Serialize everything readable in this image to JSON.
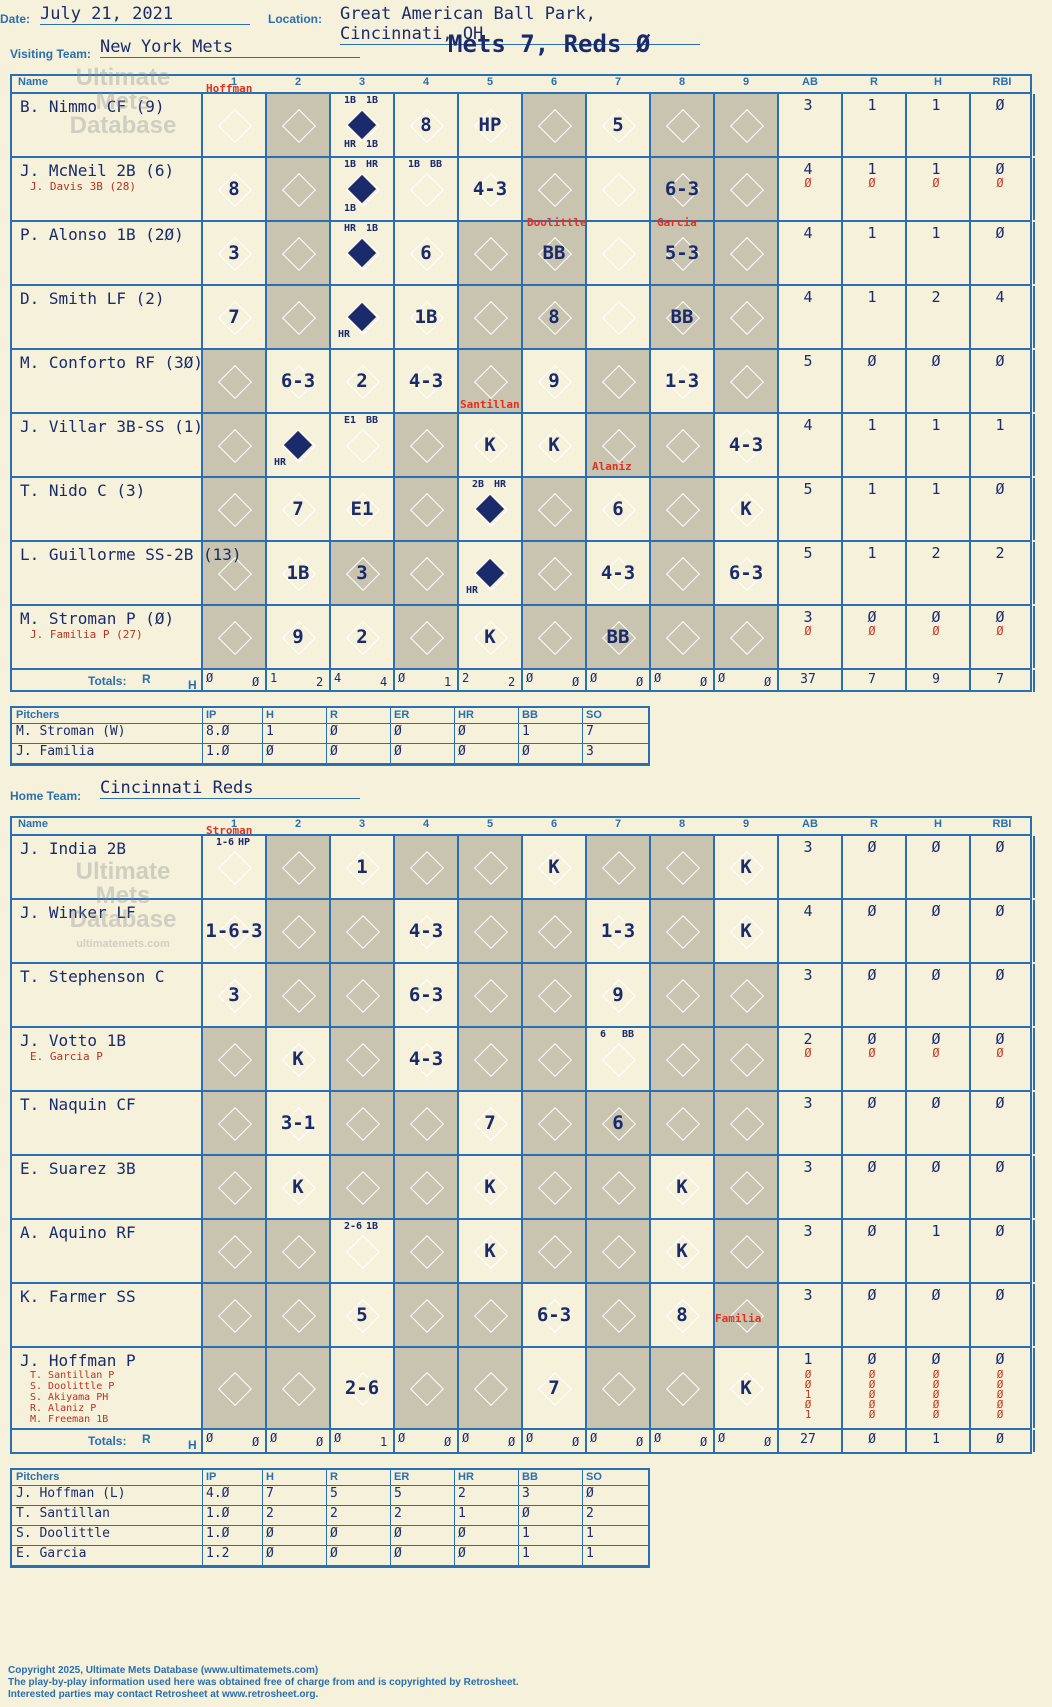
{
  "header": {
    "date_label": "Date:",
    "date": "July 21, 2021",
    "location_label": "Location:",
    "location": "Great American Ball Park, Cincinnati, OH",
    "visiting_label": "Visiting Team:",
    "visiting_team": "New York Mets",
    "home_label": "Home Team:",
    "home_team": "Cincinnati Reds",
    "score_title": "Mets 7, Reds Ø"
  },
  "columns": {
    "name": "Name",
    "innings": [
      "1",
      "2",
      "3",
      "4",
      "5",
      "6",
      "7",
      "8",
      "9"
    ],
    "stats": [
      "AB",
      "R",
      "H",
      "RBI"
    ],
    "totals": "Totals:",
    "r": "R",
    "h": "H"
  },
  "visitors": {
    "rows": [
      {
        "name": "B. Nimmo CF (9)",
        "sub": [],
        "ab": "3",
        "r": "1",
        "h": "1",
        "rbi": "Ø"
      },
      {
        "name": "J. McNeil 2B (6)",
        "sub": [
          "J. Davis 3B (28)"
        ],
        "ab": "4",
        "r": "1",
        "h": "1",
        "rbi": "Ø",
        "ab2": "Ø",
        "r2": "Ø",
        "h2": "Ø",
        "rbi2": "Ø"
      },
      {
        "name": "P. Alonso 1B (2Ø)",
        "sub": [],
        "ab": "4",
        "r": "1",
        "h": "1",
        "rbi": "Ø"
      },
      {
        "name": "D. Smith LF (2)",
        "sub": [],
        "ab": "4",
        "r": "1",
        "h": "2",
        "rbi": "4"
      },
      {
        "name": "M. Conforto RF (3Ø)",
        "sub": [],
        "ab": "5",
        "r": "Ø",
        "h": "Ø",
        "rbi": "Ø"
      },
      {
        "name": "J. Villar 3B-SS (1)",
        "sub": [],
        "ab": "4",
        "r": "1",
        "h": "1",
        "rbi": "1"
      },
      {
        "name": "T. Nido C (3)",
        "sub": [],
        "ab": "5",
        "r": "1",
        "h": "1",
        "rbi": "Ø"
      },
      {
        "name": "L. Guillorme SS-2B (13)",
        "sub": [],
        "ab": "5",
        "r": "1",
        "h": "2",
        "rbi": "2"
      },
      {
        "name": "M. Stroman P (Ø)",
        "sub": [
          "J. Familia P (27)"
        ],
        "ab": "3",
        "r": "Ø",
        "h": "Ø",
        "rbi": "Ø",
        "ab2": "Ø",
        "r2": "Ø",
        "h2": "Ø",
        "rbi2": "Ø"
      }
    ],
    "plays": [
      [
        "",
        "",
        "1B 1B HR 1B",
        "8",
        "HP",
        "",
        "5",
        "",
        ""
      ],
      [
        "8",
        "",
        "1B HR 1B",
        "1B BB",
        "4-3",
        "",
        "",
        "6-3",
        ""
      ],
      [
        "3",
        "",
        "HR 1B",
        "6",
        "",
        "BB",
        "",
        "5-3",
        ""
      ],
      [
        "7",
        "",
        "HR",
        "1B",
        "",
        "8",
        "",
        "BB",
        ""
      ],
      [
        "",
        "6-3",
        "2",
        "4-3",
        "",
        "9",
        "",
        "1-3",
        ""
      ],
      [
        "",
        "HR",
        "E1 BB",
        "",
        "K",
        "K",
        "",
        "",
        "4-3"
      ],
      [
        "",
        "7",
        "E1",
        "",
        "2B HR",
        "",
        "6",
        "",
        "K"
      ],
      [
        "",
        "1B",
        "3",
        "",
        "HR",
        "",
        "4-3",
        "",
        "6-3"
      ],
      [
        "",
        "9",
        "2",
        "",
        "K",
        "",
        "BB",
        "",
        ""
      ]
    ],
    "pitcher_changes": [
      "Hoffman",
      "Santillan",
      "Doolittle",
      "Garcia",
      "Alaniz"
    ],
    "totals_innings": [
      [
        "Ø",
        "Ø"
      ],
      [
        "1",
        "2"
      ],
      [
        "4",
        "4"
      ],
      [
        "Ø",
        "1"
      ],
      [
        "2",
        "2"
      ],
      [
        "Ø",
        "Ø"
      ],
      [
        "Ø",
        "Ø"
      ],
      [
        "Ø",
        "Ø"
      ],
      [
        "Ø",
        "Ø"
      ]
    ],
    "totals_stats": [
      "37",
      "7",
      "9",
      "7"
    ]
  },
  "visitor_pitchers": {
    "headers": [
      "Pitchers",
      "IP",
      "H",
      "R",
      "ER",
      "HR",
      "BB",
      "SO"
    ],
    "rows": [
      [
        "M. Stroman (W)",
        "8.Ø",
        "1",
        "Ø",
        "Ø",
        "Ø",
        "1",
        "7"
      ],
      [
        "J. Familia",
        "1.Ø",
        "Ø",
        "Ø",
        "Ø",
        "Ø",
        "Ø",
        "3"
      ]
    ]
  },
  "home": {
    "rows": [
      {
        "name": "J. India 2B",
        "sub": [],
        "ab": "3",
        "r": "Ø",
        "h": "Ø",
        "rbi": "Ø"
      },
      {
        "name": "J. Winker LF",
        "sub": [],
        "ab": "4",
        "r": "Ø",
        "h": "Ø",
        "rbi": "Ø"
      },
      {
        "name": "T. Stephenson C",
        "sub": [],
        "ab": "3",
        "r": "Ø",
        "h": "Ø",
        "rbi": "Ø"
      },
      {
        "name": "J. Votto 1B",
        "sub": [
          "E. Garcia P"
        ],
        "ab": "2",
        "r": "Ø",
        "h": "Ø",
        "rbi": "Ø",
        "ab2": "Ø",
        "r2": "Ø",
        "h2": "Ø",
        "rbi2": "Ø"
      },
      {
        "name": "T. Naquin CF",
        "sub": [],
        "ab": "3",
        "r": "Ø",
        "h": "Ø",
        "rbi": "Ø"
      },
      {
        "name": "E. Suarez 3B",
        "sub": [],
        "ab": "3",
        "r": "Ø",
        "h": "Ø",
        "rbi": "Ø"
      },
      {
        "name": "A. Aquino RF",
        "sub": [],
        "ab": "3",
        "r": "Ø",
        "h": "1",
        "rbi": "Ø"
      },
      {
        "name": "K. Farmer SS",
        "sub": [],
        "ab": "3",
        "r": "Ø",
        "h": "Ø",
        "rbi": "Ø"
      },
      {
        "name": "J. Hoffman P",
        "sub": [
          "T. Santillan P",
          "S. Doolittle P",
          "S. Akiyama PH",
          "R. Alaniz P",
          "M. Freeman 1B"
        ],
        "ab": "1",
        "r": "Ø",
        "h": "Ø",
        "rbi": "Ø",
        "extra": [
          "Ø",
          "Ø",
          "1",
          "Ø",
          "1"
        ]
      }
    ],
    "plays": [
      [
        "1-6 HP",
        "",
        "1",
        "",
        "",
        "K",
        "",
        "",
        "K"
      ],
      [
        "1-6-3",
        "",
        "",
        "4-3",
        "",
        "",
        "1-3",
        "",
        "K"
      ],
      [
        "3",
        "",
        "",
        "6-3",
        "",
        "",
        "9",
        "",
        ""
      ],
      [
        "",
        "K",
        "",
        "4-3",
        "",
        "",
        "6 BB",
        "",
        ""
      ],
      [
        "",
        "3-1",
        "",
        "",
        "7",
        "",
        "6",
        "",
        ""
      ],
      [
        "",
        "K",
        "",
        "",
        "K",
        "",
        "",
        "K",
        ""
      ],
      [
        "",
        "",
        "2-6 1B",
        "",
        "K",
        "",
        "",
        "K",
        ""
      ],
      [
        "",
        "",
        "5",
        "",
        "",
        "6-3",
        "",
        "8",
        ""
      ],
      [
        "",
        "",
        "2-6",
        "",
        "",
        "7",
        "",
        "",
        "K"
      ]
    ],
    "pitcher_changes": [
      "Stroman",
      "Familia"
    ],
    "totals_innings": [
      [
        "Ø",
        "Ø"
      ],
      [
        "Ø",
        "Ø"
      ],
      [
        "Ø",
        "1"
      ],
      [
        "Ø",
        "Ø"
      ],
      [
        "Ø",
        "Ø"
      ],
      [
        "Ø",
        "Ø"
      ],
      [
        "Ø",
        "Ø"
      ],
      [
        "Ø",
        "Ø"
      ],
      [
        "Ø",
        "Ø"
      ]
    ],
    "totals_stats": [
      "27",
      "Ø",
      "1",
      "Ø"
    ]
  },
  "home_pitchers": {
    "headers": [
      "Pitchers",
      "IP",
      "H",
      "R",
      "ER",
      "HR",
      "BB",
      "SO"
    ],
    "rows": [
      [
        "J. Hoffman (L)",
        "4.Ø",
        "7",
        "5",
        "5",
        "2",
        "3",
        "Ø"
      ],
      [
        "T. Santillan",
        "1.Ø",
        "2",
        "2",
        "2",
        "1",
        "Ø",
        "2"
      ],
      [
        "S. Doolittle",
        "1.Ø",
        "Ø",
        "Ø",
        "Ø",
        "Ø",
        "1",
        "1"
      ],
      [
        "E. Garcia",
        "1.2",
        "Ø",
        "Ø",
        "Ø",
        "Ø",
        "1",
        "1"
      ]
    ]
  },
  "watermark": {
    "line1": "Ultimate",
    "line2": "Mets",
    "line3": "Database",
    "line4": "ultimatemets.com"
  },
  "footer": {
    "line1": "Copyright 2025, Ultimate Mets Database (www.ultimatemets.com)",
    "line2": "The play-by-play information used here was obtained free of charge from and is copyrighted by Retrosheet.",
    "line3": "Interested parties may contact Retrosheet at www.retrosheet.org."
  },
  "colors": {
    "ink": "#1b2a6b",
    "grid": "#2a6fb0",
    "paper": "#f6f1da",
    "shade": "#c9c4af",
    "red": "#e03020"
  }
}
